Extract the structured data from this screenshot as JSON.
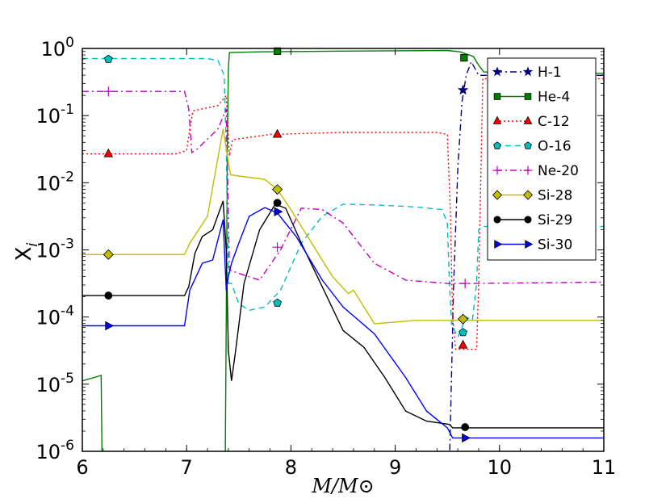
{
  "chart_data": {
    "type": "line",
    "title": "",
    "xlabel": "M/M⊙",
    "ylabel": "X",
    "ylabel_sub": "i",
    "xlim": [
      6,
      11
    ],
    "ylim_log10": [
      -6,
      0
    ],
    "y_scale": "log",
    "x_ticks": [
      "6",
      "7",
      "8",
      "9",
      "10",
      "11"
    ],
    "y_ticks": [
      {
        "base": "10",
        "exp": "-6"
      },
      {
        "base": "10",
        "exp": "-5"
      },
      {
        "base": "10",
        "exp": "-4"
      },
      {
        "base": "10",
        "exp": "-3"
      },
      {
        "base": "10",
        "exp": "-2"
      },
      {
        "base": "10",
        "exp": "-1"
      },
      {
        "base": "10",
        "exp": "0"
      }
    ],
    "legend_position": "top-right",
    "series": [
      {
        "name": "H-1",
        "color": "#000080",
        "dash": "8,4,2,4",
        "marker": "star",
        "points": [
          [
            9.52,
            -6.2
          ],
          [
            9.56,
            -3.5
          ],
          [
            9.6,
            -1.8
          ],
          [
            9.64,
            -0.8
          ],
          [
            9.68,
            -0.4
          ],
          [
            9.73,
            -0.2
          ],
          [
            9.8,
            -0.4
          ],
          [
            10.2,
            -0.4
          ],
          [
            11,
            -0.4
          ]
        ],
        "markers": [
          [
            9.65,
            -0.62
          ]
        ]
      },
      {
        "name": "He-4",
        "color": "#007f00",
        "dash": "",
        "marker": "square",
        "points": [
          [
            6,
            -4.95
          ],
          [
            6.18,
            -4.87
          ],
          [
            6.19,
            -6.2
          ],
          [
            7.37,
            -6.2
          ],
          [
            7.38,
            -4.0
          ],
          [
            7.39,
            -1.5
          ],
          [
            7.4,
            -0.3
          ],
          [
            7.41,
            -0.06
          ],
          [
            7.7,
            -0.05
          ],
          [
            8.5,
            -0.04
          ],
          [
            9.5,
            -0.03
          ],
          [
            9.62,
            -0.05
          ],
          [
            9.75,
            -0.12
          ],
          [
            9.8,
            -0.25
          ],
          [
            9.85,
            -0.35
          ],
          [
            10.2,
            -0.37
          ],
          [
            11,
            -0.37
          ]
        ],
        "markers": [
          [
            7.87,
            -0.04
          ],
          [
            9.66,
            -0.14
          ]
        ]
      },
      {
        "name": "C-12",
        "color": "#ff0000",
        "dash": "2,3",
        "marker": "triangle",
        "points": [
          [
            6,
            -1.57
          ],
          [
            6.9,
            -1.57
          ],
          [
            7.0,
            -1.52
          ],
          [
            7.03,
            -1.2
          ],
          [
            7.06,
            -0.93
          ],
          [
            7.3,
            -0.85
          ],
          [
            7.38,
            -0.7
          ],
          [
            7.41,
            -1.6
          ],
          [
            7.44,
            -1.36
          ],
          [
            7.8,
            -1.28
          ],
          [
            8.5,
            -1.25
          ],
          [
            9.4,
            -1.25
          ],
          [
            9.5,
            -1.28
          ],
          [
            9.53,
            -2.5
          ],
          [
            9.55,
            -4.0
          ],
          [
            9.58,
            -4.48
          ],
          [
            9.78,
            -4.48
          ],
          [
            9.8,
            -3.5
          ],
          [
            9.84,
            -0.45
          ],
          [
            11,
            -0.45
          ]
        ],
        "markers": [
          [
            6.25,
            -1.57
          ],
          [
            7.87,
            -1.28
          ],
          [
            9.65,
            -4.42
          ]
        ]
      },
      {
        "name": "O-16",
        "color": "#00bfbf",
        "dash": "7,5",
        "marker": "pentagon",
        "points": [
          [
            6,
            -0.15
          ],
          [
            7.2,
            -0.15
          ],
          [
            7.3,
            -0.18
          ],
          [
            7.36,
            -0.4
          ],
          [
            7.38,
            -1.5
          ],
          [
            7.4,
            -3.5
          ],
          [
            7.43,
            -3.5
          ],
          [
            7.5,
            -3.8
          ],
          [
            7.6,
            -3.9
          ],
          [
            7.75,
            -3.85
          ],
          [
            7.9,
            -3.6
          ],
          [
            8.1,
            -2.9
          ],
          [
            8.3,
            -2.5
          ],
          [
            8.5,
            -2.32
          ],
          [
            8.8,
            -2.33
          ],
          [
            9.2,
            -2.36
          ],
          [
            9.45,
            -2.4
          ],
          [
            9.5,
            -2.6
          ],
          [
            9.52,
            -3.5
          ],
          [
            9.54,
            -4.1
          ],
          [
            9.6,
            -4.3
          ],
          [
            9.68,
            -4.0
          ],
          [
            9.74,
            -4.05
          ],
          [
            9.78,
            -3.5
          ],
          [
            9.8,
            -2.7
          ],
          [
            9.83,
            -2.65
          ],
          [
            11,
            -2.65
          ]
        ],
        "markers": [
          [
            6.25,
            -0.16
          ],
          [
            7.87,
            -3.79
          ],
          [
            9.65,
            -4.23
          ]
        ]
      },
      {
        "name": "Ne-20",
        "color": "#bf00bf",
        "dash": "8,4,2,4",
        "marker": "plus",
        "points": [
          [
            6,
            -0.64
          ],
          [
            6.98,
            -0.64
          ],
          [
            7.02,
            -0.9
          ],
          [
            7.05,
            -1.55
          ],
          [
            7.1,
            -1.5
          ],
          [
            7.3,
            -1.2
          ],
          [
            7.38,
            -0.9
          ],
          [
            7.41,
            -3.3
          ],
          [
            7.5,
            -3.35
          ],
          [
            7.7,
            -3.45
          ],
          [
            7.9,
            -3.0
          ],
          [
            8.1,
            -2.38
          ],
          [
            8.3,
            -2.4
          ],
          [
            8.5,
            -2.6
          ],
          [
            8.8,
            -3.2
          ],
          [
            9.1,
            -3.45
          ],
          [
            9.5,
            -3.5
          ],
          [
            9.7,
            -3.5
          ],
          [
            11,
            -3.48
          ]
        ],
        "markers": [
          [
            6.25,
            -0.64
          ],
          [
            7.87,
            -2.96
          ],
          [
            9.67,
            -3.5
          ]
        ]
      },
      {
        "name": "Si-28",
        "color": "#bfbf00",
        "dash": "",
        "marker": "diamond",
        "points": [
          [
            6,
            -3.07
          ],
          [
            6.98,
            -3.07
          ],
          [
            7.03,
            -2.9
          ],
          [
            7.2,
            -2.5
          ],
          [
            7.35,
            -1.2
          ],
          [
            7.42,
            -1.88
          ],
          [
            7.5,
            -1.9
          ],
          [
            7.75,
            -1.95
          ],
          [
            7.87,
            -2.1
          ],
          [
            8.0,
            -2.4
          ],
          [
            8.2,
            -2.9
          ],
          [
            8.4,
            -3.4
          ],
          [
            8.55,
            -3.65
          ],
          [
            8.6,
            -3.6
          ],
          [
            8.8,
            -4.1
          ],
          [
            9.2,
            -4.05
          ],
          [
            11,
            -4.05
          ]
        ],
        "markers": [
          [
            6.25,
            -3.07
          ],
          [
            7.87,
            -2.1
          ],
          [
            9.65,
            -4.03
          ]
        ]
      },
      {
        "name": "Si-29",
        "color": "#000000",
        "dash": "",
        "marker": "circle",
        "points": [
          [
            6,
            -3.68
          ],
          [
            6.98,
            -3.68
          ],
          [
            7.02,
            -3.55
          ],
          [
            7.08,
            -3.05
          ],
          [
            7.15,
            -2.8
          ],
          [
            7.25,
            -2.7
          ],
          [
            7.35,
            -2.27
          ],
          [
            7.38,
            -3.0
          ],
          [
            7.4,
            -4.5
          ],
          [
            7.43,
            -4.95
          ],
          [
            7.47,
            -4.5
          ],
          [
            7.55,
            -3.5
          ],
          [
            7.7,
            -2.7
          ],
          [
            7.85,
            -2.32
          ],
          [
            7.95,
            -2.38
          ],
          [
            8.1,
            -2.9
          ],
          [
            8.3,
            -3.55
          ],
          [
            8.5,
            -4.2
          ],
          [
            8.7,
            -4.45
          ],
          [
            8.9,
            -4.9
          ],
          [
            9.1,
            -5.4
          ],
          [
            9.3,
            -5.55
          ],
          [
            9.52,
            -5.6
          ],
          [
            9.55,
            -5.65
          ],
          [
            11,
            -5.65
          ]
        ],
        "markers": [
          [
            6.25,
            -3.68
          ],
          [
            7.87,
            -2.3
          ],
          [
            9.67,
            -5.64
          ]
        ]
      },
      {
        "name": "Si-30",
        "color": "#0000ff",
        "dash": "",
        "marker": "triangle-right",
        "points": [
          [
            6,
            -4.13
          ],
          [
            6.98,
            -4.13
          ],
          [
            7.03,
            -3.6
          ],
          [
            7.15,
            -3.2
          ],
          [
            7.25,
            -3.15
          ],
          [
            7.35,
            -2.55
          ],
          [
            7.38,
            -3.6
          ],
          [
            7.4,
            -3.4
          ],
          [
            7.43,
            -3.2
          ],
          [
            7.5,
            -2.9
          ],
          [
            7.6,
            -2.5
          ],
          [
            7.75,
            -2.37
          ],
          [
            7.87,
            -2.45
          ],
          [
            8.05,
            -2.8
          ],
          [
            8.3,
            -3.45
          ],
          [
            8.5,
            -3.85
          ],
          [
            8.8,
            -4.25
          ],
          [
            9.1,
            -4.9
          ],
          [
            9.3,
            -5.4
          ],
          [
            9.5,
            -5.65
          ],
          [
            9.55,
            -5.8
          ],
          [
            11,
            -5.8
          ]
        ],
        "markers": [
          [
            6.25,
            -4.13
          ],
          [
            7.87,
            -2.43
          ],
          [
            9.67,
            -5.8
          ]
        ]
      }
    ]
  }
}
